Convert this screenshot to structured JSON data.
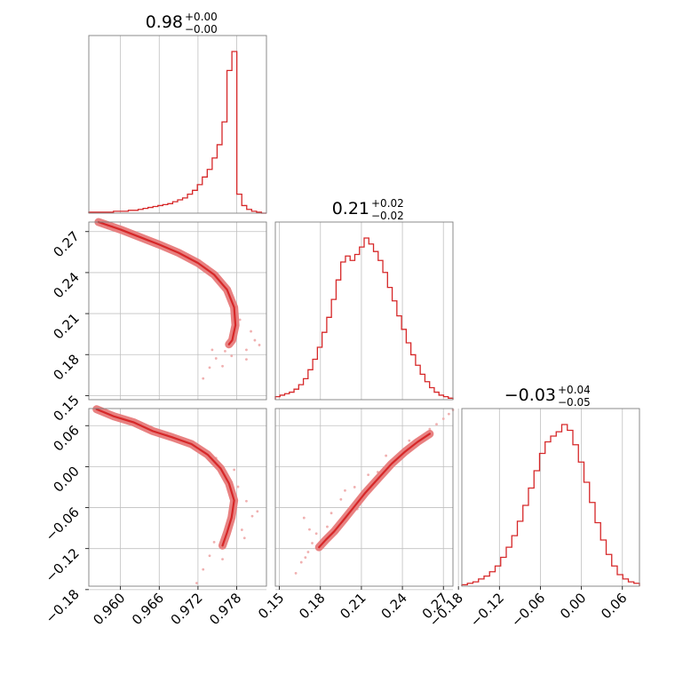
{
  "colors": {
    "line": "#d62728",
    "fill": "#f0a8a8",
    "points": "#f0b0b0",
    "grid": "#c0c0c0",
    "frame": "#7f7f7f"
  },
  "chart_data": {
    "type": "corner",
    "grid": true,
    "parameters": [
      {
        "index": 0,
        "title": {
          "value": "0.98",
          "plus": "+0.00",
          "minus": "−0.00"
        },
        "range": [
          0.9551,
          0.9826
        ],
        "ticks": [
          0.96,
          0.966,
          0.972,
          0.978
        ],
        "tick_labels": [
          "0.960",
          "0.966",
          "0.972",
          "0.978"
        ],
        "histogram": {
          "bin_edges_range": [
            0.9551,
            0.9826
          ],
          "counts": [
            1,
            1,
            1,
            1,
            1,
            2,
            2,
            2,
            3,
            3,
            4,
            5,
            6,
            7,
            8,
            9,
            10,
            12,
            14,
            16,
            20,
            24,
            30,
            38,
            46,
            58,
            72,
            96,
            150,
            170,
            20,
            8,
            4,
            2,
            1,
            0
          ]
        }
      },
      {
        "index": 1,
        "title": {
          "value": "0.21",
          "plus": "+0.02",
          "minus": "−0.02"
        },
        "range": [
          0.147,
          0.277
        ],
        "ticks": [
          0.15,
          0.18,
          0.21,
          0.24,
          0.27
        ],
        "tick_labels": [
          "0.15",
          "0.18",
          "0.21",
          "0.24",
          "0.27"
        ],
        "histogram": {
          "bin_edges_range": [
            0.147,
            0.277
          ],
          "counts": [
            2,
            3,
            4,
            5,
            7,
            10,
            14,
            20,
            27,
            35,
            45,
            55,
            67,
            80,
            92,
            96,
            93,
            97,
            102,
            108,
            104,
            99,
            93,
            85,
            75,
            66,
            56,
            47,
            38,
            30,
            23,
            17,
            12,
            8,
            5,
            3,
            2,
            1
          ]
        }
      },
      {
        "index": 2,
        "title": {
          "value": "−0.03",
          "plus": "+0.04",
          "minus": "−0.05"
        },
        "range": [
          -0.175,
          0.085
        ],
        "ticks": [
          -0.18,
          -0.12,
          -0.06,
          0.0,
          0.06
        ],
        "tick_labels": [
          "−0.18",
          "−0.12",
          "−0.06",
          "0.00",
          "0.06"
        ],
        "histogram": {
          "bin_edges_range": [
            -0.175,
            0.085
          ],
          "counts": [
            1,
            2,
            3,
            5,
            7,
            10,
            14,
            20,
            27,
            35,
            45,
            56,
            68,
            80,
            92,
            100,
            104,
            107,
            112,
            108,
            98,
            86,
            72,
            58,
            44,
            32,
            22,
            14,
            8,
            5,
            3,
            2
          ]
        }
      }
    ],
    "pairs": [
      {
        "x_param": 0,
        "y_param": 1,
        "ridge": [
          [
            0.9566,
            0.277
          ],
          [
            0.96,
            0.2715
          ],
          [
            0.963,
            0.266
          ],
          [
            0.966,
            0.2605
          ],
          [
            0.969,
            0.2545
          ],
          [
            0.972,
            0.247
          ],
          [
            0.9745,
            0.2385
          ],
          [
            0.9765,
            0.2275
          ],
          [
            0.9776,
            0.2145
          ],
          [
            0.9778,
            0.2015
          ],
          [
            0.9773,
            0.1905
          ],
          [
            0.9768,
            0.1875
          ]
        ],
        "scatter": [
          [
            0.957,
            0.2745
          ],
          [
            0.958,
            0.2728
          ],
          [
            0.9615,
            0.2685
          ],
          [
            0.9625,
            0.2665
          ],
          [
            0.9643,
            0.2635
          ],
          [
            0.9655,
            0.2615
          ],
          [
            0.9672,
            0.2585
          ],
          [
            0.9705,
            0.2525
          ],
          [
            0.9735,
            0.2445
          ],
          [
            0.9752,
            0.2355
          ],
          [
            0.9778,
            0.215
          ],
          [
            0.9785,
            0.2055
          ],
          [
            0.9802,
            0.197
          ],
          [
            0.9808,
            0.1905
          ],
          [
            0.9795,
            0.1835
          ],
          [
            0.9762,
            0.1825
          ],
          [
            0.9748,
            0.1772
          ],
          [
            0.9738,
            0.1705
          ],
          [
            0.9728,
            0.1625
          ],
          [
            0.9795,
            0.1765
          ],
          [
            0.9815,
            0.187
          ],
          [
            0.9772,
            0.179
          ],
          [
            0.9742,
            0.1835
          ],
          [
            0.9758,
            0.1715
          ]
        ]
      },
      {
        "x_param": 0,
        "y_param": 2,
        "ridge": [
          [
            0.9563,
            0.084
          ],
          [
            0.959,
            0.0735
          ],
          [
            0.962,
            0.065
          ],
          [
            0.965,
            0.052
          ],
          [
            0.968,
            0.043
          ],
          [
            0.971,
            0.033
          ],
          [
            0.9735,
            0.0175
          ],
          [
            0.9755,
            -0.0025
          ],
          [
            0.9768,
            -0.0245
          ],
          [
            0.9776,
            -0.0495
          ],
          [
            0.9772,
            -0.0745
          ],
          [
            0.9765,
            -0.0965
          ],
          [
            0.9758,
            -0.1155
          ]
        ],
        "scatter": [
          [
            0.957,
            0.081
          ],
          [
            0.9585,
            0.0755
          ],
          [
            0.9608,
            0.068
          ],
          [
            0.962,
            0.0655
          ],
          [
            0.9632,
            0.0625
          ],
          [
            0.9672,
            0.0485
          ],
          [
            0.9708,
            0.0345
          ],
          [
            0.9748,
            0.0125
          ],
          [
            0.9782,
            -0.0295
          ],
          [
            0.9795,
            -0.0505
          ],
          [
            0.9804,
            -0.0725
          ],
          [
            0.9788,
            -0.0925
          ],
          [
            0.9745,
            -0.1105
          ],
          [
            0.9738,
            -0.1305
          ],
          [
            0.9728,
            -0.1505
          ],
          [
            0.9718,
            -0.1705
          ],
          [
            0.9792,
            -0.1045
          ],
          [
            0.9812,
            -0.0655
          ],
          [
            0.9758,
            -0.1355
          ],
          [
            0.9776,
            -0.0045
          ]
        ]
      },
      {
        "x_param": 1,
        "y_param": 2,
        "ridge": [
          [
            0.179,
            -0.118
          ],
          [
            0.184,
            -0.107
          ],
          [
            0.19,
            -0.095
          ],
          [
            0.197,
            -0.078
          ],
          [
            0.205,
            -0.058
          ],
          [
            0.213,
            -0.038
          ],
          [
            0.222,
            -0.018
          ],
          [
            0.232,
            0.004
          ],
          [
            0.242,
            0.022
          ],
          [
            0.251,
            0.036
          ],
          [
            0.26,
            0.048
          ]
        ],
        "scatter": [
          [
            0.162,
            -0.156
          ],
          [
            0.166,
            -0.14
          ],
          [
            0.169,
            -0.133
          ],
          [
            0.171,
            -0.125
          ],
          [
            0.174,
            -0.112
          ],
          [
            0.177,
            -0.098
          ],
          [
            0.172,
            -0.092
          ],
          [
            0.168,
            -0.075
          ],
          [
            0.185,
            -0.088
          ],
          [
            0.188,
            -0.068
          ],
          [
            0.195,
            -0.048
          ],
          [
            0.205,
            -0.03
          ],
          [
            0.198,
            -0.035
          ],
          [
            0.215,
            -0.012
          ],
          [
            0.228,
            0.016
          ],
          [
            0.245,
            0.038
          ],
          [
            0.26,
            0.055
          ],
          [
            0.265,
            0.062
          ],
          [
            0.27,
            0.07
          ],
          [
            0.274,
            0.077
          ],
          [
            0.277,
            0.083
          ],
          [
            0.24,
            0.018
          ],
          [
            0.222,
            -0.008
          ],
          [
            0.207,
            -0.062
          ],
          [
            0.196,
            -0.081
          ]
        ]
      }
    ]
  }
}
